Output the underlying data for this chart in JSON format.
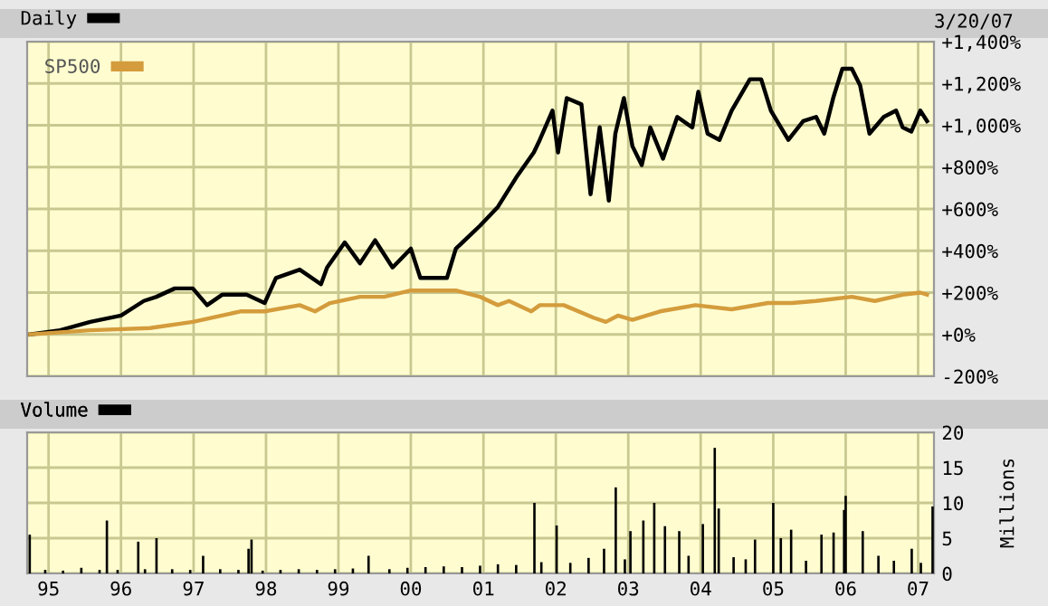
{
  "chart_data": [
    {
      "type": "line",
      "annotations": [
        "3/20/07"
      ],
      "legend": "top left",
      "grid": true,
      "tick_labels": "y",
      "xlim": [
        "1994-09-15",
        "2007-03-22"
      ],
      "ylim": [
        -200,
        1400
      ],
      "yticks": [
        {
          "value": -200,
          "label": "-200%"
        },
        {
          "value": 0,
          "label": "+0%"
        },
        {
          "value": 200,
          "label": "+200%"
        },
        {
          "value": 400,
          "label": "+400%"
        },
        {
          "value": 600,
          "label": "+600%"
        },
        {
          "value": 800,
          "label": "+800%"
        },
        {
          "value": 1000,
          "label": "+1,000%"
        },
        {
          "value": 1200,
          "label": "+1,200%"
        },
        {
          "value": 1400,
          "label": "+1,400%"
        }
      ],
      "series": [
        {
          "name": "Daily",
          "color": "#000000",
          "x": [
            "1994-10-01",
            "1995-02-28",
            "1995-07-30",
            "1996-01-01",
            "1996-04-25",
            "1996-06-28",
            "1996-09-28",
            "1996-12-28",
            "1997-03-10",
            "1997-05-25",
            "1997-09-25",
            "1997-12-25",
            "1998-02-20",
            "1998-06-20",
            "1998-10-05",
            "1998-11-05",
            "1999-02-02",
            "1999-04-20",
            "1999-07-05",
            "1999-10-01",
            "2000-01-01",
            "2000-02-18",
            "2000-07-01",
            "2000-08-15",
            "2000-12-15",
            "2001-03-15",
            "2001-06-15",
            "2001-09-12",
            "2001-10-12",
            "2001-12-15",
            "2002-01-12",
            "2002-02-25",
            "2002-05-10",
            "2002-06-25",
            "2002-08-10",
            "2002-09-25",
            "2002-10-28",
            "2002-12-10",
            "2003-01-22",
            "2003-03-10",
            "2003-04-22",
            "2003-06-25",
            "2003-09-05",
            "2003-11-20",
            "2003-12-20",
            "2004-02-05",
            "2004-04-05",
            "2004-06-05",
            "2004-09-05",
            "2004-11-01",
            "2004-12-20",
            "2005-03-18",
            "2005-06-01",
            "2005-08-05",
            "2005-09-15",
            "2005-10-30",
            "2005-12-15",
            "2006-02-01",
            "2006-03-15",
            "2006-05-01",
            "2006-07-12",
            "2006-09-12",
            "2006-10-15",
            "2006-11-28",
            "2007-01-12",
            "2007-02-15"
          ],
          "values": [
            0,
            20,
            60,
            90,
            160,
            180,
            220,
            220,
            140,
            190,
            190,
            150,
            270,
            310,
            240,
            320,
            440,
            340,
            450,
            320,
            410,
            270,
            270,
            410,
            520,
            610,
            750,
            870,
            930,
            1070,
            870,
            1130,
            1100,
            670,
            990,
            640,
            960,
            1130,
            900,
            810,
            990,
            840,
            1040,
            990,
            1160,
            960,
            930,
            1070,
            1220,
            1220,
            1070,
            930,
            1020,
            1040,
            960,
            1130,
            1270,
            1270,
            1190,
            960,
            1040,
            1070,
            990,
            970,
            1070,
            1020
          ]
        },
        {
          "name": "SP500",
          "color": "#d49c3c",
          "x": [
            "1994-10-01",
            "1995-07-30",
            "1996-05-25",
            "1996-12-28",
            "1997-08-25",
            "1997-12-25",
            "1998-06-20",
            "1998-09-05",
            "1998-11-20",
            "1999-04-20",
            "1999-08-20",
            "2000-01-01",
            "2000-03-15",
            "2000-08-15",
            "2000-12-15",
            "2001-03-15",
            "2001-05-10",
            "2001-08-30",
            "2001-10-12",
            "2002-02-10",
            "2002-07-10",
            "2002-09-10",
            "2002-11-10",
            "2003-01-22",
            "2003-06-10",
            "2003-12-05",
            "2004-06-05",
            "2004-12-05",
            "2005-04-05",
            "2005-08-05",
            "2006-02-01",
            "2006-05-28",
            "2006-10-15",
            "2007-01-12",
            "2007-02-15"
          ],
          "values": [
            0,
            20,
            30,
            60,
            110,
            110,
            140,
            110,
            150,
            180,
            180,
            210,
            210,
            210,
            180,
            140,
            160,
            110,
            140,
            140,
            80,
            60,
            90,
            70,
            110,
            140,
            120,
            150,
            150,
            160,
            180,
            160,
            190,
            200,
            190
          ]
        }
      ]
    },
    {
      "type": "bar",
      "legend": "top left",
      "grid": true,
      "ylabel": "Millions",
      "xlim": [
        "1994-09-15",
        "2007-03-22"
      ],
      "xticks": [
        {
          "value": "1995-01-01",
          "label": "95"
        },
        {
          "value": "1996-01-01",
          "label": "96"
        },
        {
          "value": "1997-01-01",
          "label": "97"
        },
        {
          "value": "1998-01-01",
          "label": "98"
        },
        {
          "value": "1999-01-01",
          "label": "99"
        },
        {
          "value": "2000-01-01",
          "label": "00"
        },
        {
          "value": "2001-01-01",
          "label": "01"
        },
        {
          "value": "2002-01-01",
          "label": "02"
        },
        {
          "value": "2003-01-01",
          "label": "03"
        },
        {
          "value": "2004-01-01",
          "label": "04"
        },
        {
          "value": "2005-01-01",
          "label": "05"
        },
        {
          "value": "2006-01-01",
          "label": "06"
        },
        {
          "value": "2007-01-01",
          "label": "07"
        }
      ],
      "ylim": [
        0,
        20
      ],
      "yticks": [
        0,
        5,
        10,
        15,
        20
      ],
      "series": [
        {
          "name": "Volume",
          "color": "#000000",
          "x": [
            "1994-09-28",
            "1994-12-15",
            "1995-03-15",
            "1995-06-15",
            "1995-09-15",
            "1995-10-22",
            "1995-12-15",
            "1996-03-28",
            "1996-05-01",
            "1996-06-28",
            "1996-09-15",
            "1996-12-15",
            "1997-02-18",
            "1997-05-15",
            "1997-08-15",
            "1997-10-05",
            "1997-10-20",
            "1997-12-15",
            "1998-03-15",
            "1998-06-15",
            "1998-09-15",
            "1998-12-15",
            "1999-03-15",
            "1999-06-02",
            "1999-09-15",
            "1999-12-15",
            "2000-03-15",
            "2000-06-15",
            "2000-09-15",
            "2000-12-15",
            "2001-03-15",
            "2001-06-15",
            "2001-09-15",
            "2001-10-20",
            "2002-01-05",
            "2002-03-15",
            "2002-06-15",
            "2002-09-01",
            "2002-10-30",
            "2002-12-15",
            "2003-01-12",
            "2003-03-18",
            "2003-05-12",
            "2003-07-05",
            "2003-09-15",
            "2003-11-01",
            "2004-01-12",
            "2004-03-12",
            "2004-04-01",
            "2004-06-15",
            "2004-08-15",
            "2004-10-01",
            "2005-01-01",
            "2005-02-08",
            "2005-04-01",
            "2005-06-15",
            "2005-09-01",
            "2005-11-01",
            "2005-12-24",
            "2006-01-01",
            "2006-03-28",
            "2006-06-15",
            "2006-09-01",
            "2006-11-30",
            "2007-01-15",
            "2007-03-15"
          ],
          "values": [
            5.5,
            0.5,
            0.4,
            0.8,
            0.5,
            7.5,
            0.5,
            4.5,
            0.6,
            5,
            0.6,
            0.5,
            2.5,
            0.6,
            0.5,
            3.5,
            4.8,
            0.4,
            0.5,
            0.6,
            0.5,
            0.6,
            0.7,
            2.5,
            0.6,
            0.8,
            0.9,
            1.0,
            0.9,
            1.1,
            1.3,
            1.2,
            10,
            1.6,
            6.8,
            1.5,
            2.2,
            3.5,
            12.2,
            2.0,
            6,
            7.5,
            10,
            6.7,
            6,
            2.5,
            7,
            17.8,
            9.2,
            2.3,
            2.0,
            4.8,
            10,
            5,
            6.2,
            1.8,
            5.5,
            5.8,
            9,
            11,
            6,
            2.5,
            1.8,
            3.5,
            1.5,
            9.5
          ]
        }
      ]
    }
  ]
}
